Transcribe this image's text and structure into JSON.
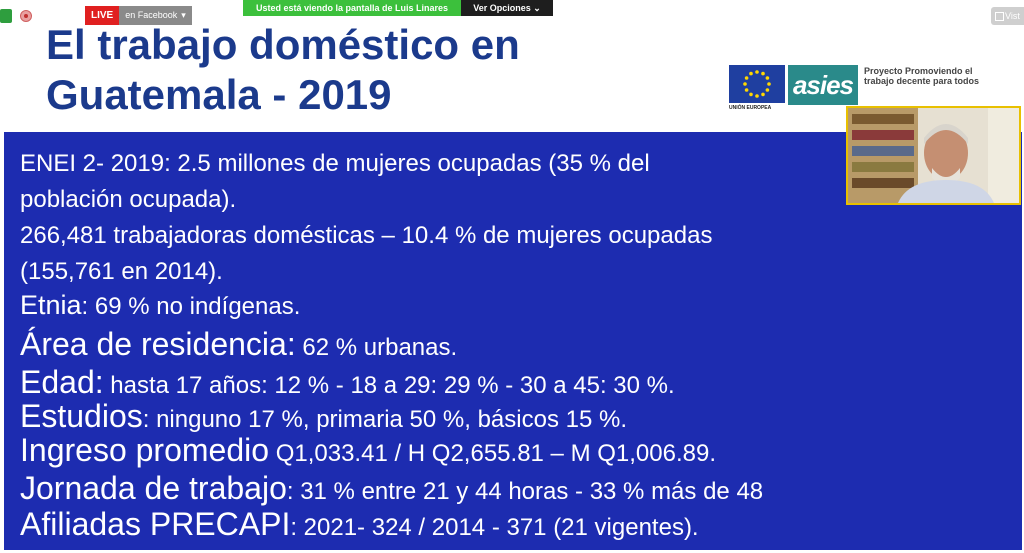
{
  "zoom_bar": {
    "live_badge": "LIVE",
    "live_text": "en Facebook",
    "live_caret": "▾",
    "share_text": "Usted está viendo la pantalla de Luis Linares",
    "share_options": "Ver Opciones ⌄",
    "view_label": "Vist"
  },
  "slide": {
    "title_line1": "El trabajo doméstico en",
    "title_line2": "Guatemala - 2019",
    "eu_caption": "UNIÓN EUROPEA",
    "asies_logo_text": "asies",
    "project_text": "Proyecto Promoviendo el trabajo decente para todos",
    "lines": [
      {
        "text": "ENEI 2- 2019: 2.5 millones de mujeres ocupadas (35 % del"
      },
      {
        "text": "población ocupada)."
      },
      {
        "text": " 266,481 trabajadoras domésticas – 10.4 % de mujeres ocupadas"
      },
      {
        "text": "(155,761 en 2014)."
      },
      {
        "label": "Etnia",
        "rest": ": 69 % no indígenas."
      },
      {
        "label": "Área de residencia:",
        "rest": " 62 % urbanas."
      },
      {
        "label": " Edad:",
        "rest": "  hasta 17 años:  12 % - 18 a 29:  29 % - 30 a 45: 30 %."
      },
      {
        "label": "Estudios",
        "rest": ": ninguno 17 %, primaria 50 %, básicos 15 %."
      },
      {
        "label": "Ingreso promedio",
        "rest": " Q1,033.41 / H Q2,655.81 – M  Q1,006.89."
      },
      {
        "label": "Jornada de trabajo",
        "rest": ": 31 % entre 21 y 44 horas - 33 % más de 48"
      },
      {
        "label": "Afiliadas PRECAPI",
        "rest": ": 2021- 324  /  2014 - 371 (21 vigentes)."
      }
    ]
  }
}
